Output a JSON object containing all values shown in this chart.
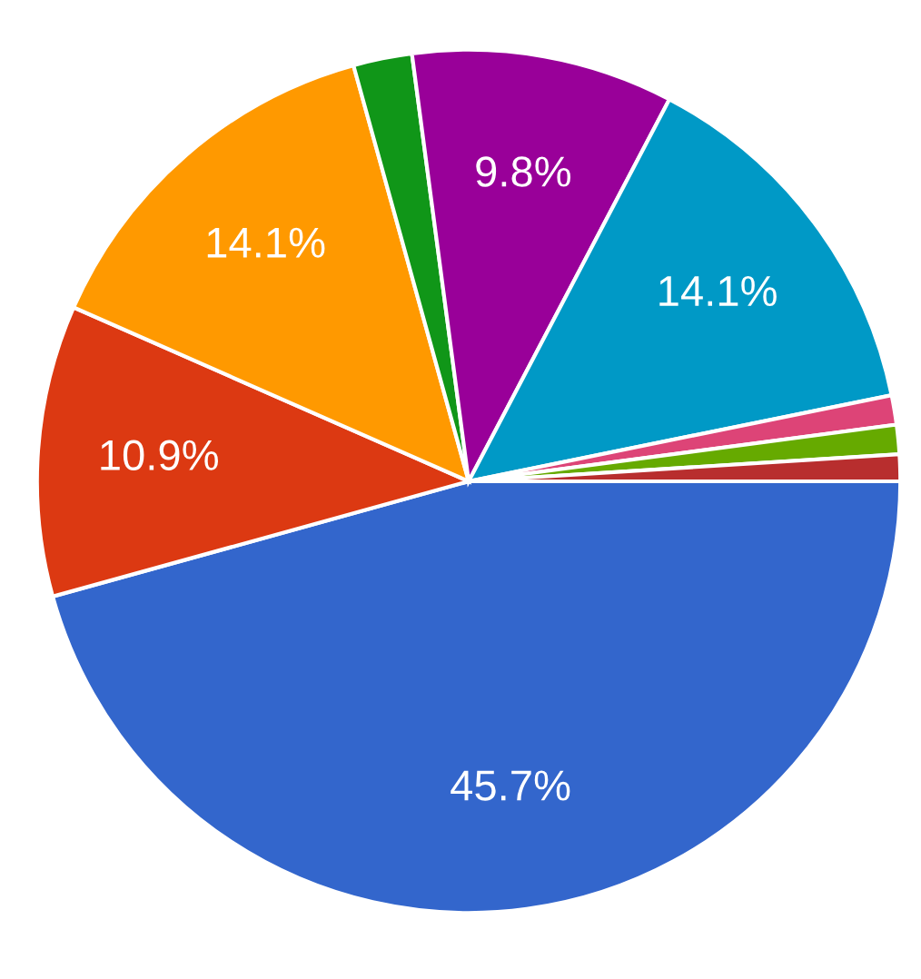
{
  "chart_data": {
    "type": "pie",
    "categories": [
      null,
      null,
      null,
      null,
      null,
      null,
      null,
      null,
      null
    ],
    "values": [
      45.7,
      10.9,
      14.1,
      2.2,
      9.8,
      14.1,
      1.1,
      1.1,
      1.0
    ],
    "colors": [
      "#3366cc",
      "#dc3912",
      "#ff9900",
      "#109618",
      "#990099",
      "#0099c6",
      "#dd4477",
      "#66aa00",
      "#b82e2e"
    ],
    "value_labels": [
      "45.7%",
      "10.9%",
      "14.1%",
      null,
      "9.8%",
      "14.1%",
      null,
      null,
      null
    ]
  }
}
